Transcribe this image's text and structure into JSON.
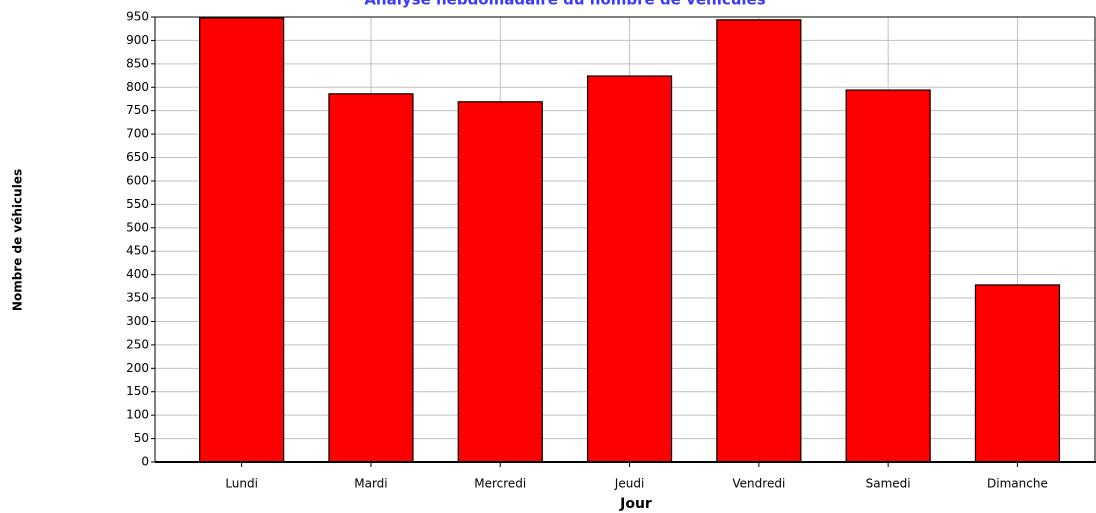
{
  "chart_data": {
    "type": "bar",
    "title": "Analyse hebdomadaire du nombre de véhicules",
    "x_label": "Jour",
    "y_label": "Nombre de véhicules",
    "categories": [
      "Lundi",
      "Mardi",
      "Mercredi",
      "Jeudi",
      "Vendredi",
      "Samedi",
      "Dimanche"
    ],
    "values": [
      948,
      786,
      769,
      824,
      944,
      794,
      378
    ],
    "color": "#ff0000",
    "ylim": [
      0,
      950
    ],
    "yticks": [
      0,
      50,
      100,
      150,
      200,
      250,
      300,
      350,
      400,
      450,
      500,
      550,
      600,
      650,
      700,
      750,
      800,
      850,
      900,
      950
    ],
    "grid": true
  }
}
